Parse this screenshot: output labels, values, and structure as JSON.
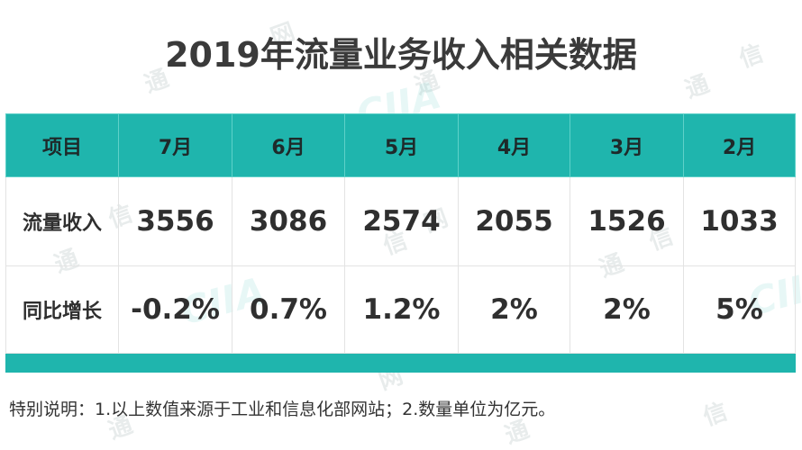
{
  "title": "2019年流量业务收入相关数据",
  "table": {
    "headers": [
      "项目",
      "7月",
      "6月",
      "5月",
      "4月",
      "3月",
      "2月"
    ],
    "rows": [
      {
        "label": "流量收入",
        "values": [
          "3556",
          "3086",
          "2574",
          "2055",
          "1526",
          "1033"
        ]
      },
      {
        "label": "同比增长",
        "values": [
          "-0.2%",
          "0.7%",
          "1.2%",
          "2%",
          "2%",
          "5%"
        ]
      }
    ]
  },
  "note": "特别说明：1.以上数值来源于工业和信息化部网站；2.数量单位为亿元。",
  "watermark": {
    "chars": [
      "通",
      "信",
      "网"
    ],
    "logo": "CIIA"
  },
  "colors": {
    "header_bg": "#1fb5ad",
    "title": "#3a3a3a"
  }
}
